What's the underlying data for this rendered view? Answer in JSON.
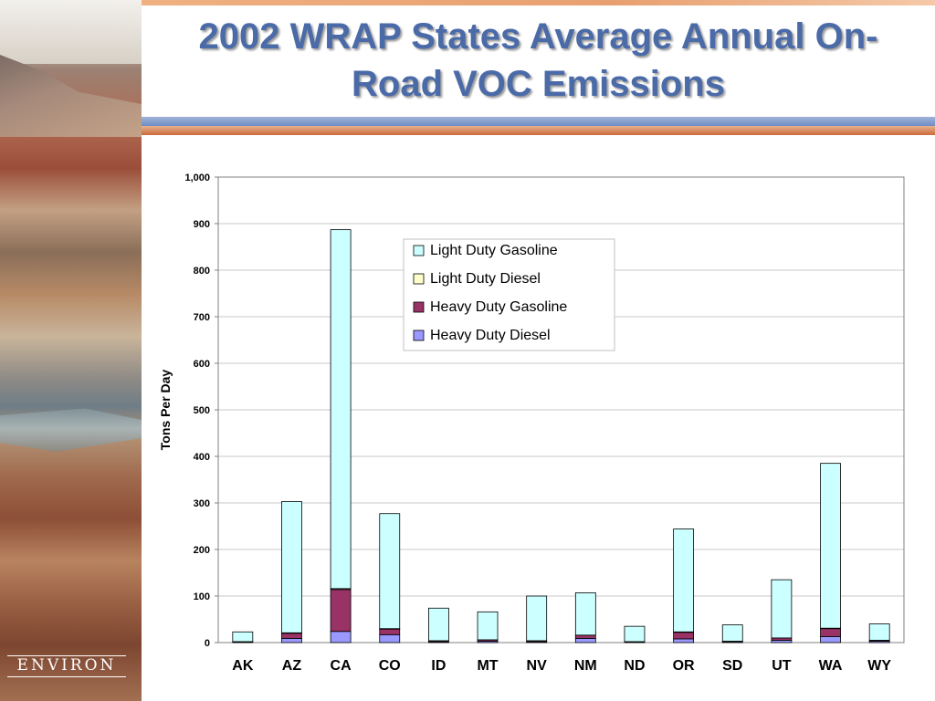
{
  "slide": {
    "title_line1": "2002 WRAP States Average Annual On-",
    "title_line2": "Road VOC Emissions",
    "logo_text": "ENVIRON"
  },
  "chart_data": {
    "type": "bar",
    "stacked": true,
    "ylabel": "Tons Per Day",
    "xlabel": "",
    "ylim": [
      0,
      1000
    ],
    "yticks": [
      0,
      100,
      200,
      300,
      400,
      500,
      600,
      700,
      800,
      900,
      1000
    ],
    "ytick_labels": [
      "0",
      "100",
      "200",
      "300",
      "400",
      "500",
      "600",
      "700",
      "800",
      "900",
      "1,000"
    ],
    "grid": true,
    "legend_position": "top-center",
    "categories": [
      "AK",
      "AZ",
      "CA",
      "CO",
      "ID",
      "MT",
      "NV",
      "NM",
      "ND",
      "OR",
      "SD",
      "UT",
      "WA",
      "WY"
    ],
    "series": [
      {
        "name": "Heavy Duty Diesel",
        "color": "#9999ff",
        "values": [
          1,
          9,
          24,
          17,
          2,
          3,
          2,
          9,
          1,
          8,
          2,
          5,
          13,
          3
        ]
      },
      {
        "name": "Heavy Duty Gasoline",
        "color": "#993366",
        "values": [
          1,
          11,
          90,
          12,
          2,
          3,
          2,
          7,
          1,
          14,
          1,
          5,
          17,
          2
        ]
      },
      {
        "name": "Light Duty Diesel",
        "color": "#ffffcc",
        "values": [
          0,
          1,
          2,
          1,
          0,
          0,
          0,
          0,
          0,
          1,
          0,
          0,
          1,
          0
        ]
      },
      {
        "name": "Light Duty Gasoline",
        "color": "#ccffff",
        "values": [
          21,
          282,
          771,
          247,
          70,
          60,
          96,
          91,
          33,
          221,
          35,
          125,
          354,
          35
        ]
      }
    ],
    "legend_order": [
      "Light Duty Gasoline",
      "Light Duty Diesel",
      "Heavy Duty Gasoline",
      "Heavy Duty Diesel"
    ]
  }
}
